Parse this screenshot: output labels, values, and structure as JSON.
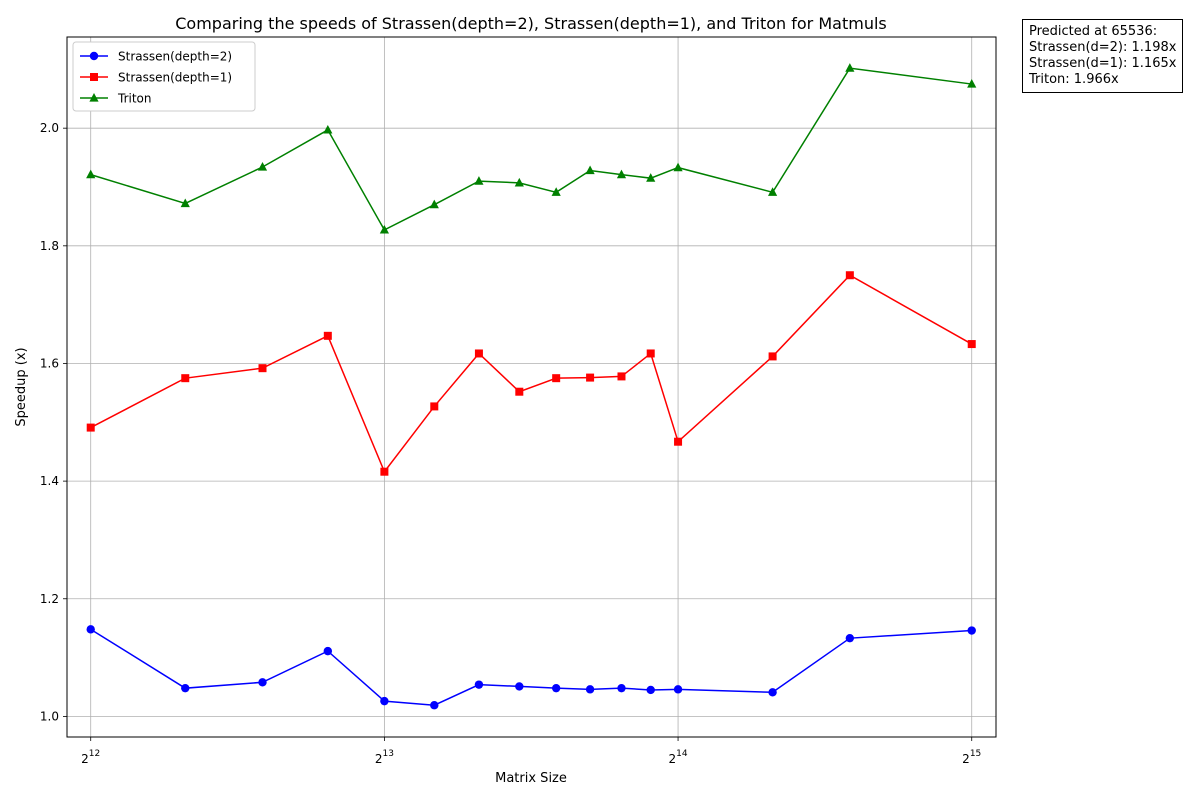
{
  "chart_data": {
    "type": "line",
    "title": "Comparing the speeds of Strassen(depth=2), Strassen(depth=1), and Triton for Matmuls",
    "xlabel": "Matrix Size",
    "ylabel": "Speedup (x)",
    "x_scale": "log2",
    "xlim": [
      3873,
      34700
    ],
    "ylim": [
      0.965,
      2.155
    ],
    "x_ticks": [
      {
        "value": 4096,
        "base": "2",
        "exp": "12"
      },
      {
        "value": 8192,
        "base": "2",
        "exp": "13"
      },
      {
        "value": 16384,
        "base": "2",
        "exp": "14"
      },
      {
        "value": 32768,
        "base": "2",
        "exp": "15"
      }
    ],
    "y_ticks": [
      "1.0",
      "1.2",
      "1.4",
      "1.6",
      "1.8",
      "2.0"
    ],
    "grid": true,
    "legend_position": "top-left",
    "x": [
      4096,
      5120,
      6144,
      7168,
      8192,
      9216,
      10240,
      11264,
      12288,
      13312,
      14336,
      15360,
      16384,
      20480,
      24576,
      32768
    ],
    "series": [
      {
        "name": "Strassen(depth=2)",
        "color": "#0000ff",
        "marker": "circle",
        "values": [
          1.148,
          1.048,
          1.058,
          1.111,
          1.026,
          1.019,
          1.054,
          1.051,
          1.048,
          1.046,
          1.048,
          1.045,
          1.046,
          1.041,
          1.133,
          1.146
        ]
      },
      {
        "name": "Strassen(depth=1)",
        "color": "#ff0000",
        "marker": "square",
        "values": [
          1.491,
          1.575,
          1.592,
          1.647,
          1.416,
          1.527,
          1.617,
          1.552,
          1.575,
          1.576,
          1.578,
          1.617,
          1.467,
          1.612,
          1.75,
          1.633
        ]
      },
      {
        "name": "Triton",
        "color": "#008000",
        "marker": "triangle",
        "values": [
          1.921,
          1.872,
          1.934,
          1.997,
          1.827,
          1.87,
          1.91,
          1.907,
          1.891,
          1.928,
          1.921,
          1.915,
          1.933,
          1.891,
          2.102,
          2.075
        ]
      }
    ],
    "annotation_lines": [
      "Predicted at 65536:",
      "Strassen(d=2): 1.198x",
      "Strassen(d=1): 1.165x",
      "Triton: 1.966x"
    ]
  }
}
